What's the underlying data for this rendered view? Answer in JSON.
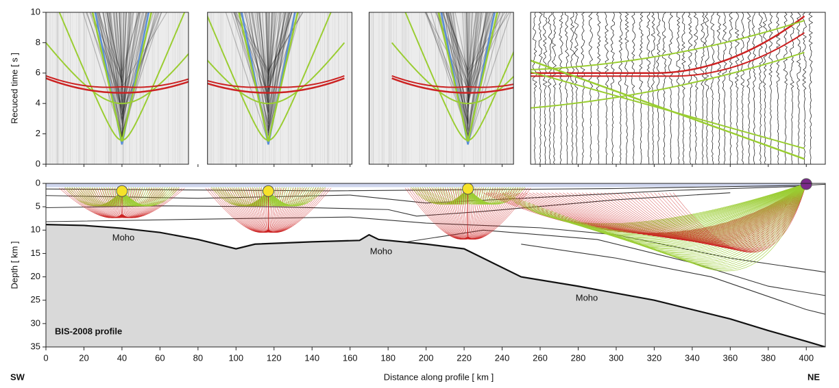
{
  "chart_data": [
    {
      "type": "seismic",
      "ylabel": "Recuced time  [ s ]",
      "xlim": [
        0,
        410
      ],
      "ylim": [
        0,
        10
      ],
      "yticks": [
        0,
        2,
        4,
        6,
        8,
        10
      ],
      "xticks": [
        0,
        20,
        40,
        60,
        80,
        100,
        120,
        140,
        160,
        180,
        200,
        220,
        240,
        260,
        280,
        300,
        320,
        340,
        360,
        380,
        400
      ],
      "panels": [
        [
          0,
          75
        ],
        [
          85,
          161
        ],
        [
          170,
          246
        ],
        [
          255,
          410
        ]
      ]
    },
    {
      "type": "section",
      "xlabel": "Distance along profile  [ km ]",
      "ylabel": "Depth  [ km ]",
      "annotations": [
        "BIS-2008 profile",
        "Moho",
        "Moho",
        "Moho",
        "SW",
        "NE"
      ],
      "xlim": [
        0,
        410
      ],
      "ylim": [
        0,
        35
      ],
      "xticks": [
        0,
        20,
        40,
        60,
        80,
        100,
        120,
        140,
        160,
        180,
        200,
        220,
        240,
        260,
        280,
        300,
        320,
        340,
        360,
        380,
        400
      ],
      "yticks": [
        0,
        5,
        10,
        15,
        20,
        25,
        30,
        35
      ],
      "shots": {
        "x": [
          40,
          117,
          222,
          400
        ],
        "y": [
          1.5,
          1.5,
          1,
          0
        ],
        "colors": [
          "#f5e22a",
          "#f5e22a",
          "#f5e22a",
          "#7b2a8a"
        ]
      },
      "moho": {
        "x": [
          0,
          20,
          40,
          60,
          80,
          100,
          110,
          140,
          165,
          170,
          175,
          200,
          220,
          235,
          250,
          280,
          320,
          360,
          380,
          400,
          410
        ],
        "y": [
          8.8,
          9,
          9.6,
          10.5,
          12,
          14,
          13,
          12.5,
          12.2,
          11,
          12,
          13,
          14,
          17,
          20,
          22,
          25,
          29,
          31.5,
          33.8,
          35
        ]
      }
    }
  ]
}
